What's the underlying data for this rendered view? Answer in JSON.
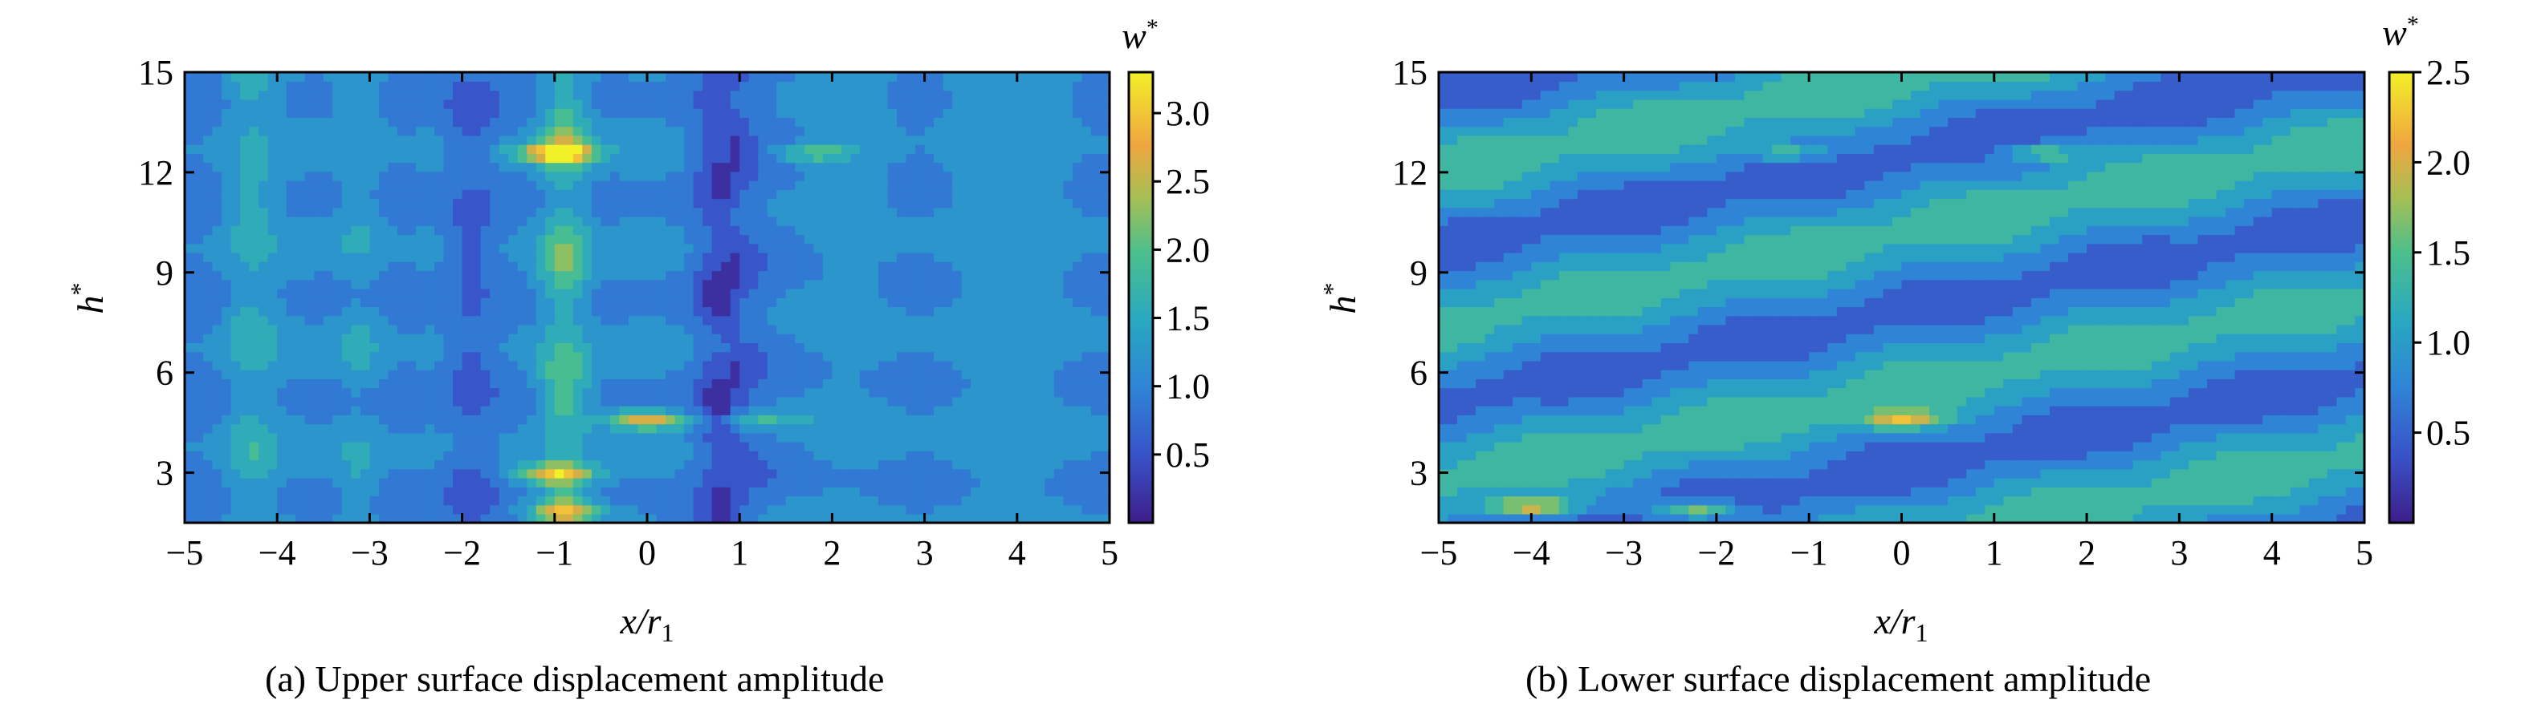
{
  "chart_data": [
    {
      "type": "heatmap",
      "panel": "a",
      "xlabel": "x/r",
      "xlabel_sub": "1",
      "ylabel": "h",
      "ylabel_sup": "*",
      "colorbar_label": "w",
      "colorbar_label_sup": "*",
      "xlim": [
        -5,
        5
      ],
      "ylim": [
        1.5,
        15
      ],
      "clim": [
        0,
        3.3
      ],
      "xticks": [
        "−5",
        "−4",
        "−3",
        "−2",
        "−1",
        "0",
        "1",
        "2",
        "3",
        "4",
        "5"
      ],
      "xtick_values": [
        -5,
        -4,
        -3,
        -2,
        -1,
        0,
        1,
        2,
        3,
        4,
        5
      ],
      "yticks": [
        "3",
        "6",
        "9",
        "12",
        "15"
      ],
      "ytick_values": [
        3,
        6,
        9,
        12,
        15
      ],
      "colorbar_ticks": [
        "0.5",
        "1.0",
        "1.5",
        "2.0",
        "2.5",
        "3.0"
      ],
      "colorbar_tick_values": [
        0.5,
        1.0,
        1.5,
        2.0,
        2.5,
        3.0
      ],
      "caption": "(a) Upper surface displacement amplitude",
      "field": {
        "base": 1.0,
        "structure": "vertical-bands",
        "ridges_x": [
          -4.3,
          -3.1,
          -1.9,
          -0.9,
          0.8
        ],
        "ridge_values": [
          1.6,
          1.5,
          0.4,
          2.2,
          0.3
        ],
        "layers_h": [
          1.8,
          3.0,
          4.7,
          6.1,
          8.0,
          9.6,
          11.2,
          12.6,
          14.0
        ],
        "hotspots": [
          {
            "x": -1.0,
            "h": 12.6,
            "w": 2.9
          },
          {
            "x": 0.0,
            "h": 4.6,
            "w": 2.6
          },
          {
            "x": -1.0,
            "h": 3.0,
            "w": 2.6
          },
          {
            "x": -0.9,
            "h": 1.9,
            "w": 2.2
          },
          {
            "x": 1.8,
            "h": 12.6,
            "w": 2.0
          },
          {
            "x": 1.2,
            "h": 4.6,
            "w": 1.8
          }
        ]
      }
    },
    {
      "type": "heatmap",
      "panel": "b",
      "xlabel": "x/r",
      "xlabel_sub": "1",
      "ylabel": "h",
      "ylabel_sup": "*",
      "colorbar_label": "w",
      "colorbar_label_sup": "*",
      "xlim": [
        -5,
        5
      ],
      "ylim": [
        1.5,
        15
      ],
      "clim": [
        0,
        2.5
      ],
      "xticks": [
        "−5",
        "−4",
        "−3",
        "−2",
        "−1",
        "0",
        "1",
        "2",
        "3",
        "4",
        "5"
      ],
      "xtick_values": [
        -5,
        -4,
        -3,
        -2,
        -1,
        0,
        1,
        2,
        3,
        4,
        5
      ],
      "yticks": [
        "3",
        "6",
        "9",
        "12",
        "15"
      ],
      "ytick_values": [
        3,
        6,
        9,
        12,
        15
      ],
      "colorbar_ticks": [
        "0.5",
        "1.0",
        "1.5",
        "2.0",
        "2.5"
      ],
      "colorbar_tick_values": [
        0.5,
        1.0,
        1.5,
        2.0,
        2.5
      ],
      "caption": "(b) Lower surface displacement amplitude",
      "field": {
        "base": 0.9,
        "structure": "diagonal-bands",
        "band_slope": 0.55,
        "hotspots": [
          {
            "x": -4.0,
            "h": 2.0,
            "w": 2.2
          },
          {
            "x": -2.2,
            "h": 1.9,
            "w": 2.1
          },
          {
            "x": 0.0,
            "h": 4.6,
            "w": 2.0
          },
          {
            "x": 1.5,
            "h": 12.6,
            "w": 1.7
          },
          {
            "x": -1.2,
            "h": 12.6,
            "w": 1.6
          }
        ]
      }
    }
  ]
}
